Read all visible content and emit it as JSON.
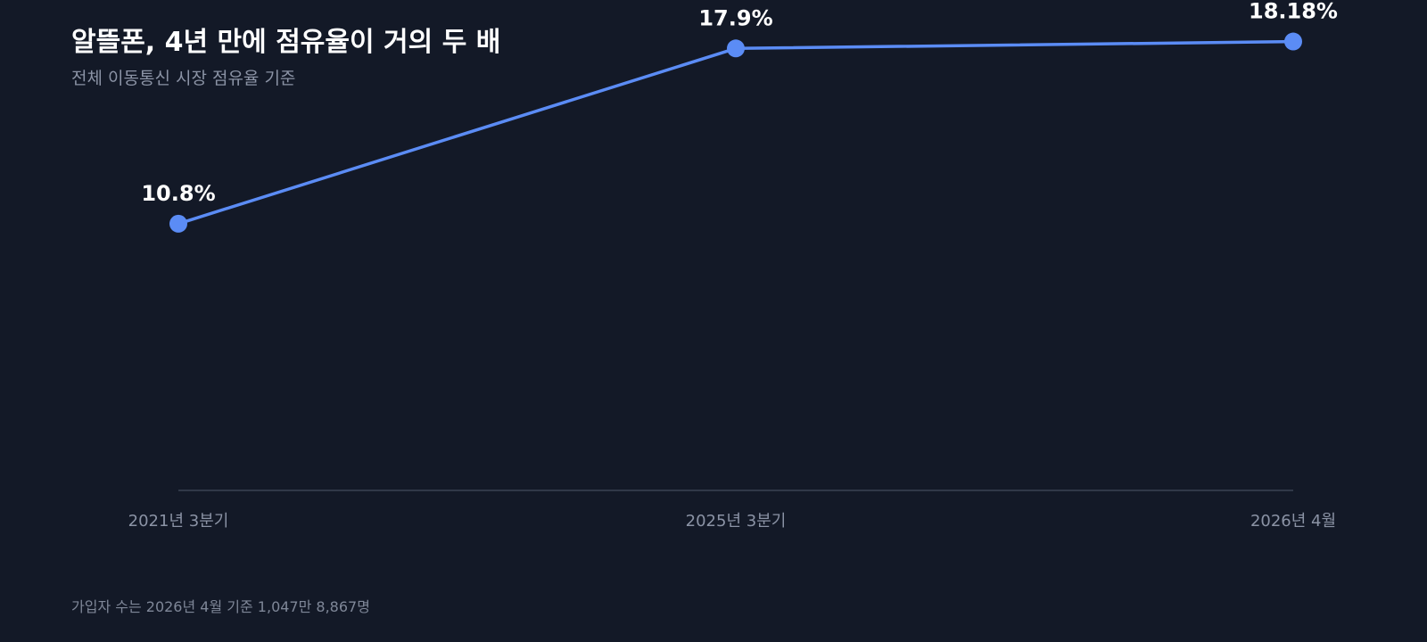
{
  "header": {
    "title": "알뜰폰, 4년 만에 점유율이 거의 두 배",
    "subtitle": "전체 이동통신 시장 점유율 기준"
  },
  "footnote": "가입자 수는 2026년 4월 기준 1,047만 8,867명",
  "colors": {
    "background": "#131927",
    "line": "#5b8cf5",
    "point": "#5b8cf5",
    "value_label": "#ffffff",
    "tick_label": "#8b93a5",
    "axis": "#3a4254"
  },
  "chart_data": {
    "type": "line",
    "title": "알뜰폰, 4년 만에 점유율이 거의 두 배",
    "subtitle": "전체 이동통신 시장 점유율 기준",
    "categories": [
      "2021년 3분기",
      "2025년 3분기",
      "2026년 4월"
    ],
    "values": [
      10.8,
      17.9,
      18.18
    ],
    "value_labels": [
      "10.8%",
      "17.9%",
      "18.18%"
    ],
    "unit": "%",
    "ylim": [
      0,
      19.5
    ],
    "grid": false,
    "legend": "none",
    "y_axis_visible": false
  }
}
